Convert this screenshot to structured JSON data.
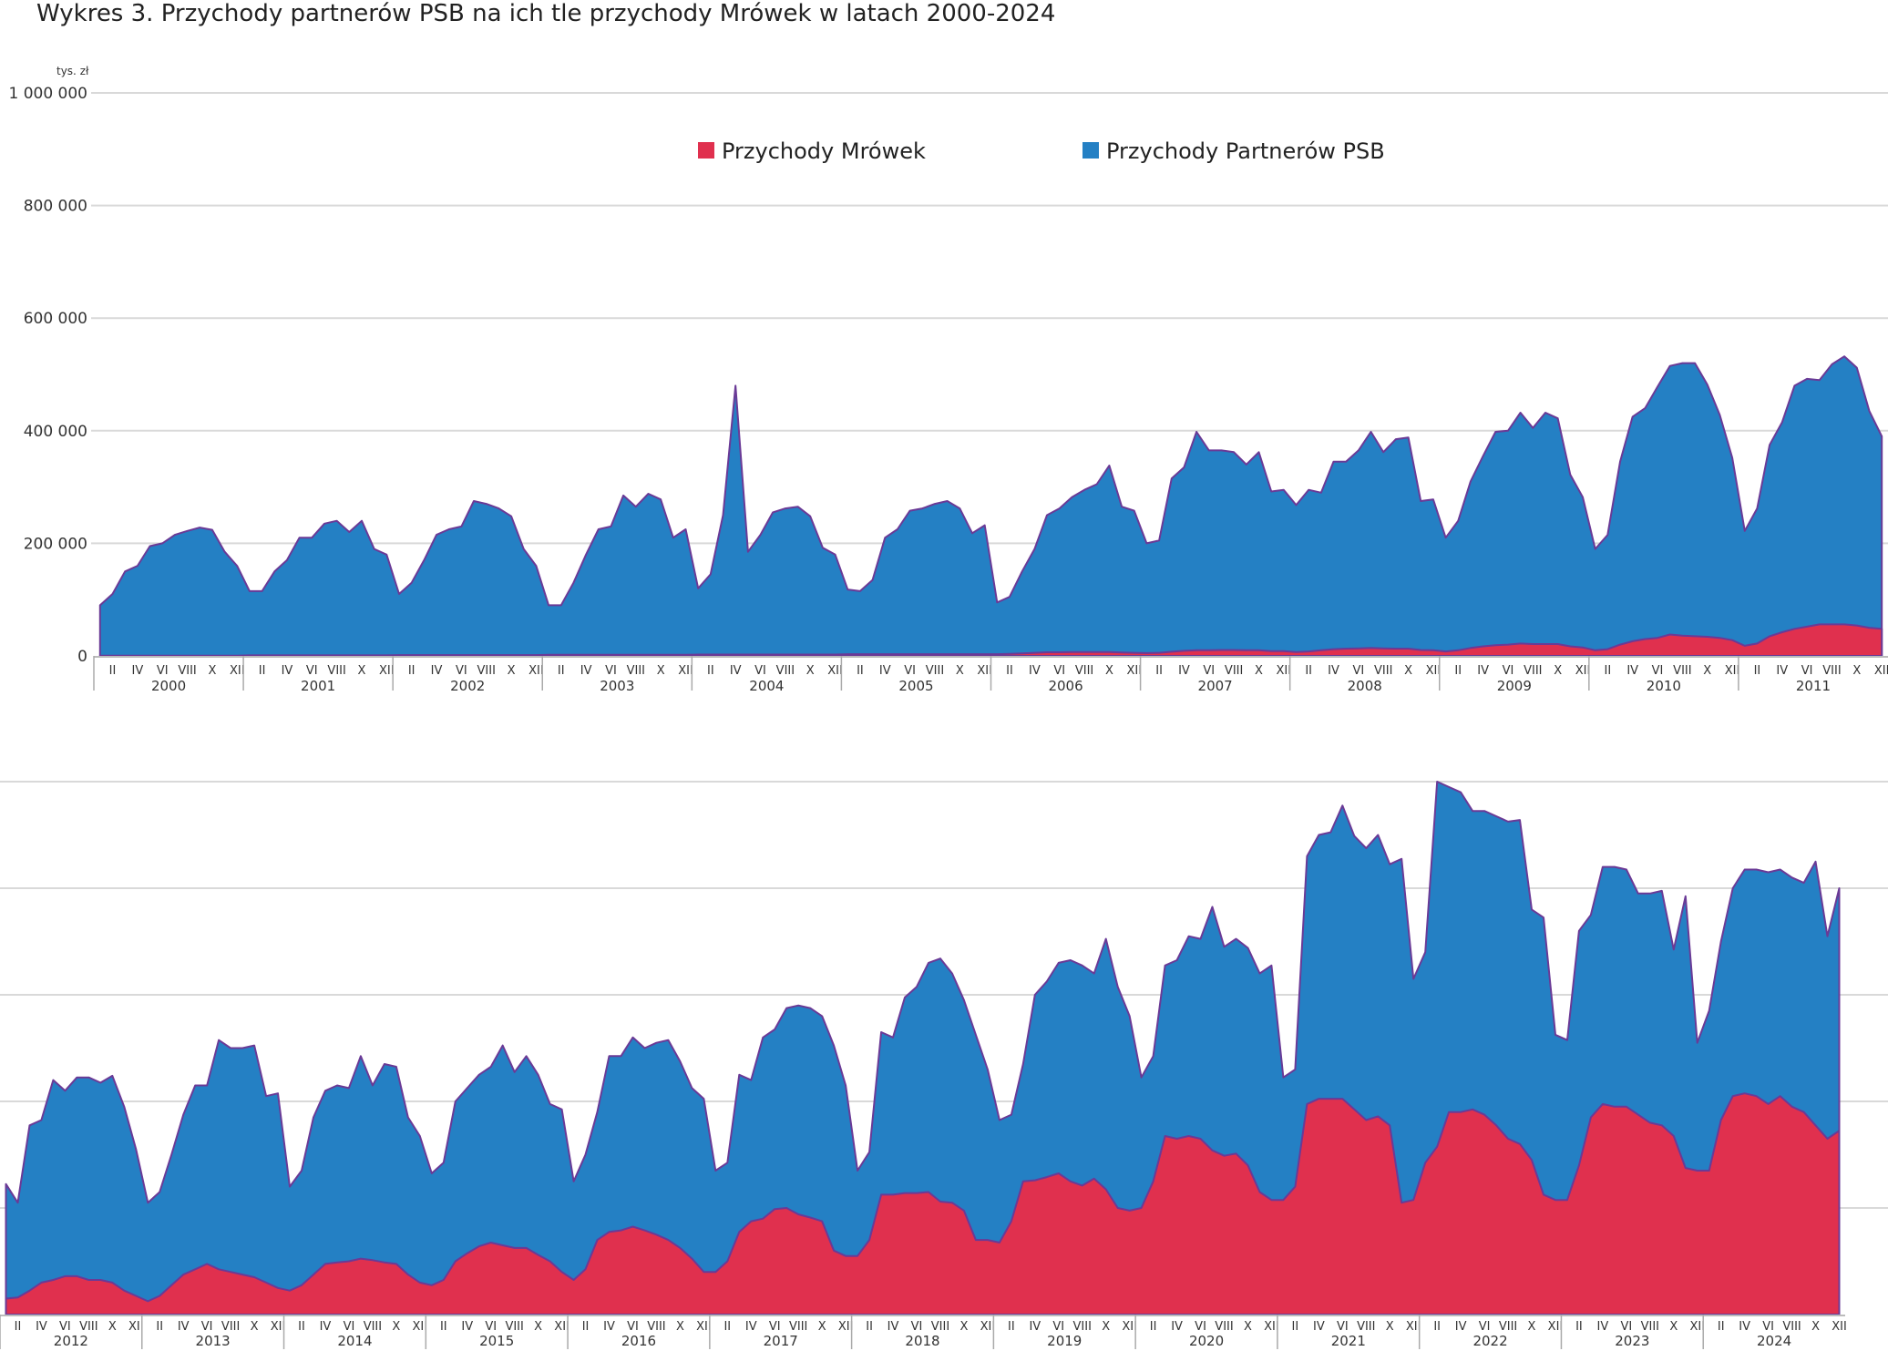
{
  "title": "Wykres 3. Przychody partnerów PSB na ich tle przychody Mrówek w latach 2000-2024",
  "colors": {
    "psb": "#2480c4",
    "mrowki": "#e0304e",
    "outline": "#6a3a96",
    "grid": "#d9d9d9"
  },
  "chart_data": [
    {
      "type": "area",
      "unit_label": "tys. zł",
      "ylim": [
        0,
        1000000
      ],
      "yticks": [
        0,
        200000,
        400000,
        600000,
        800000,
        1000000
      ],
      "ytick_labels": [
        "0",
        "200 000",
        "400 000",
        "600 000",
        "800 000",
        "1 000 000"
      ],
      "month_labels": [
        "II",
        "IV",
        "VI",
        "VIII",
        "X",
        "XII"
      ],
      "legend": [
        "Przychody Mrówek",
        "Przychody Partnerów PSB"
      ],
      "legend_position": "top-center",
      "years": [
        "2000",
        "2001",
        "2002",
        "2003",
        "2004",
        "2005",
        "2006",
        "2007",
        "2008",
        "2009",
        "2010",
        "2011"
      ],
      "series": [
        {
          "name": "Przychody Partnerów PSB",
          "values": [
            90000,
            110000,
            150000,
            160000,
            195000,
            200000,
            215000,
            222000,
            228000,
            224000,
            185000,
            160000,
            115000,
            115000,
            150000,
            170000,
            210000,
            210000,
            235000,
            240000,
            220000,
            240000,
            190000,
            180000,
            110000,
            130000,
            170000,
            215000,
            225000,
            230000,
            275000,
            270000,
            262000,
            248000,
            190000,
            160000,
            90000,
            90000,
            130000,
            180000,
            225000,
            230000,
            285000,
            265000,
            288000,
            278000,
            210000,
            225000,
            120000,
            145000,
            250000,
            480000,
            185000,
            215000,
            255000,
            262000,
            265000,
            248000,
            192000,
            180000,
            118000,
            115000,
            135000,
            210000,
            225000,
            258000,
            262000,
            270000,
            275000,
            262000,
            218000,
            232000,
            95000,
            105000,
            150000,
            190000,
            250000,
            262000,
            282000,
            295000,
            305000,
            338000,
            265000,
            258000,
            200000,
            205000,
            315000,
            335000,
            398000,
            365000,
            365000,
            362000,
            340000,
            362000,
            292000,
            295000,
            268000,
            295000,
            290000,
            345000,
            345000,
            365000,
            398000,
            362000,
            385000,
            388000,
            275000,
            278000,
            210000,
            240000,
            310000,
            355000,
            398000,
            400000,
            432000,
            405000,
            432000,
            422000,
            322000,
            282000,
            190000,
            215000,
            345000,
            425000,
            440000,
            478000,
            515000,
            520000,
            520000,
            482000,
            428000,
            352000,
            222000,
            262000,
            375000,
            415000,
            480000,
            492000,
            490000,
            518000,
            532000,
            512000,
            435000,
            390000
          ]
        },
        {
          "name": "Przychody Mrówek",
          "values": [
            500,
            500,
            500,
            500,
            500,
            500,
            500,
            500,
            500,
            500,
            500,
            500,
            1000,
            1000,
            1000,
            1000,
            1000,
            1000,
            1000,
            1000,
            1000,
            1000,
            1000,
            1000,
            1500,
            1500,
            1500,
            1500,
            1500,
            1500,
            1500,
            1500,
            1500,
            1500,
            1500,
            1500,
            2000,
            2000,
            2000,
            2000,
            2000,
            2000,
            2000,
            2000,
            2000,
            2000,
            2000,
            2000,
            2500,
            2500,
            2500,
            2500,
            2500,
            2500,
            2500,
            2500,
            2500,
            2500,
            2500,
            2500,
            3000,
            3000,
            3000,
            3000,
            3000,
            3000,
            3000,
            3000,
            3000,
            3000,
            3000,
            3000,
            3000,
            3500,
            4500,
            5500,
            6500,
            6500,
            7000,
            7000,
            7000,
            7000,
            6000,
            5500,
            5000,
            5500,
            7500,
            9000,
            10000,
            10000,
            10500,
            10500,
            10000,
            10000,
            8500,
            8500,
            7000,
            8000,
            10000,
            12000,
            13000,
            13500,
            14000,
            13500,
            13000,
            13000,
            10500,
            10000,
            8000,
            10000,
            14000,
            17000,
            19000,
            20000,
            22000,
            21000,
            21000,
            21000,
            17000,
            15000,
            10000,
            12000,
            20000,
            26000,
            30000,
            32000,
            38000,
            36000,
            35000,
            34000,
            32000,
            28000,
            18000,
            22000,
            35000,
            42000,
            48000,
            52000,
            56000,
            56000,
            56000,
            54000,
            50000,
            48000
          ]
        }
      ]
    },
    {
      "type": "area",
      "ylim": [
        0,
        1000000
      ],
      "yticks": [
        0,
        200000,
        400000,
        600000,
        800000,
        1000000
      ],
      "month_labels": [
        "II",
        "IV",
        "VI",
        "VIII",
        "X",
        "XII"
      ],
      "years": [
        "2012",
        "2013",
        "2014",
        "2015",
        "2016",
        "2017",
        "2018",
        "2019",
        "2020",
        "2021",
        "2022",
        "2023",
        "2024"
      ],
      "series": [
        {
          "name": "Przychody Partnerów PSB",
          "values": [
            245000,
            210000,
            355000,
            365000,
            440000,
            420000,
            445000,
            445000,
            435000,
            448000,
            390000,
            310000,
            210000,
            230000,
            300000,
            375000,
            430000,
            430000,
            515000,
            500000,
            500000,
            505000,
            410000,
            415000,
            240000,
            270000,
            370000,
            420000,
            430000,
            425000,
            485000,
            430000,
            470000,
            465000,
            370000,
            335000,
            265000,
            285000,
            400000,
            425000,
            450000,
            465000,
            505000,
            455000,
            485000,
            450000,
            395000,
            385000,
            250000,
            300000,
            380000,
            485000,
            485000,
            520000,
            500000,
            510000,
            515000,
            475000,
            425000,
            405000,
            270000,
            285000,
            450000,
            440000,
            520000,
            535000,
            575000,
            580000,
            575000,
            560000,
            505000,
            430000,
            270000,
            305000,
            530000,
            520000,
            595000,
            615000,
            660000,
            668000,
            640000,
            590000,
            525000,
            460000,
            365000,
            375000,
            470000,
            600000,
            625000,
            660000,
            665000,
            655000,
            640000,
            705000,
            615000,
            560000,
            445000,
            485000,
            655000,
            665000,
            710000,
            705000,
            765000,
            690000,
            705000,
            688000,
            640000,
            655000,
            445000,
            460000,
            860000,
            900000,
            905000,
            955000,
            898000,
            875000,
            900000,
            845000,
            855000,
            630000,
            680000,
            1000000,
            990000,
            980000,
            945000,
            945000,
            935000,
            925000,
            928000,
            760000,
            745000,
            525000,
            515000,
            720000,
            750000,
            840000,
            840000,
            835000,
            790000,
            790000,
            795000,
            685000,
            785000,
            510000,
            570000,
            700000,
            800000,
            835000,
            835000,
            830000,
            835000,
            820000,
            810000,
            850000,
            710000,
            800000
          ]
        },
        {
          "name": "Przychody Mrówek",
          "values": [
            30000,
            32000,
            45000,
            60000,
            65000,
            72000,
            72000,
            65000,
            65000,
            60000,
            45000,
            35000,
            25000,
            35000,
            55000,
            75000,
            85000,
            95000,
            85000,
            80000,
            75000,
            70000,
            60000,
            50000,
            45000,
            55000,
            75000,
            95000,
            98000,
            100000,
            105000,
            102000,
            98000,
            95000,
            75000,
            60000,
            55000,
            65000,
            100000,
            115000,
            128000,
            135000,
            130000,
            125000,
            125000,
            112000,
            100000,
            80000,
            65000,
            85000,
            140000,
            155000,
            158000,
            165000,
            158000,
            150000,
            140000,
            125000,
            105000,
            80000,
            80000,
            100000,
            155000,
            175000,
            180000,
            198000,
            200000,
            188000,
            182000,
            175000,
            120000,
            110000,
            110000,
            140000,
            225000,
            225000,
            228000,
            228000,
            230000,
            212000,
            210000,
            195000,
            140000,
            140000,
            135000,
            175000,
            250000,
            252000,
            258000,
            265000,
            250000,
            242000,
            255000,
            235000,
            200000,
            195000,
            200000,
            250000,
            335000,
            330000,
            335000,
            330000,
            308000,
            298000,
            302000,
            280000,
            230000,
            215000,
            215000,
            240000,
            395000,
            405000,
            405000,
            405000,
            385000,
            365000,
            372000,
            355000,
            210000,
            215000,
            285000,
            315000,
            380000,
            380000,
            385000,
            375000,
            355000,
            330000,
            320000,
            290000,
            225000,
            215000,
            215000,
            280000,
            370000,
            395000,
            390000,
            390000,
            375000,
            360000,
            355000,
            335000,
            275000,
            270000,
            270000,
            365000,
            410000,
            415000,
            410000,
            395000,
            410000,
            390000,
            380000,
            355000,
            330000,
            345000
          ]
        }
      ]
    }
  ]
}
